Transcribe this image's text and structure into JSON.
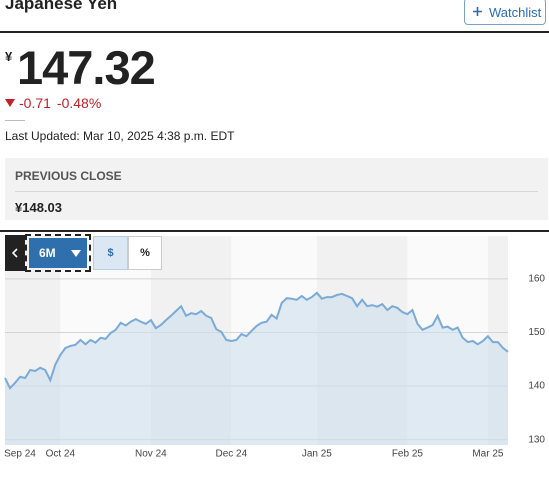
{
  "header": {
    "title": "Japanese Yen",
    "watchlist": "Watchlist"
  },
  "quote": {
    "currency": "¥",
    "price": "147.32",
    "change": "-0.71",
    "change_percent": "-0.48%",
    "last_updated": "Last Updated: Mar 10, 2025 4:38 p.m. EDT"
  },
  "previous_close": {
    "label": "PREVIOUS CLOSE",
    "value": "¥148.03"
  },
  "controls": {
    "range": "6M",
    "currency": "$",
    "percent": "%"
  },
  "chart_data": {
    "type": "line",
    "color": "#7aaad8",
    "grid": true,
    "categories": [
      "Sep 24",
      null,
      null,
      null,
      null,
      null,
      null,
      null,
      null,
      null,
      null,
      "Oct 24",
      null,
      null,
      null,
      null,
      null,
      null,
      null,
      null,
      null,
      null,
      null,
      null,
      null,
      null,
      null,
      null,
      null,
      "Nov 24",
      null,
      null,
      null,
      null,
      null,
      null,
      null,
      null,
      null,
      null,
      null,
      null,
      null,
      null,
      null,
      "Dec 24",
      null,
      null,
      null,
      null,
      null,
      null,
      null,
      null,
      null,
      null,
      null,
      null,
      null,
      null,
      null,
      null,
      "Jan 25",
      null,
      null,
      null,
      null,
      null,
      null,
      null,
      null,
      null,
      null,
      null,
      null,
      null,
      null,
      null,
      null,
      null,
      "Feb 25",
      null,
      null,
      null,
      null,
      null,
      null,
      null,
      null,
      null,
      null,
      null,
      null,
      null,
      null,
      null,
      "Mar 25",
      null,
      null,
      null,
      null
    ],
    "values": [
      141.5,
      139.6,
      140.6,
      141.7,
      141.5,
      143.0,
      142.8,
      143.4,
      143.0,
      141.1,
      144.0,
      145.8,
      147.1,
      147.5,
      147.7,
      148.6,
      147.8,
      148.6,
      148.1,
      149.0,
      148.8,
      149.9,
      150.5,
      151.8,
      151.3,
      152.0,
      152.5,
      152.0,
      151.6,
      152.3,
      150.8,
      151.4,
      152.3,
      153.1,
      154.0,
      154.9,
      153.1,
      153.6,
      153.4,
      154.0,
      153.1,
      152.7,
      150.6,
      150.1,
      148.6,
      148.4,
      148.6,
      149.7,
      149.3,
      150.3,
      151.2,
      151.8,
      152.0,
      153.3,
      152.6,
      155.5,
      156.4,
      156.3,
      156.1,
      156.8,
      156.1,
      156.6,
      157.4,
      156.3,
      156.6,
      156.6,
      157.0,
      157.2,
      156.8,
      156.4,
      154.9,
      156.1,
      154.9,
      155.1,
      154.8,
      155.3,
      154.2,
      154.9,
      154.6,
      153.8,
      153.4,
      154.2,
      151.6,
      150.5,
      150.9,
      151.4,
      153.1,
      150.9,
      151.1,
      150.5,
      150.9,
      149.0,
      148.2,
      148.4,
      147.8,
      148.4,
      149.3,
      148.2,
      148.2,
      147.1,
      146.4
    ],
    "ylim": [
      129,
      168
    ],
    "yticks": [
      130,
      140,
      150,
      160
    ]
  }
}
